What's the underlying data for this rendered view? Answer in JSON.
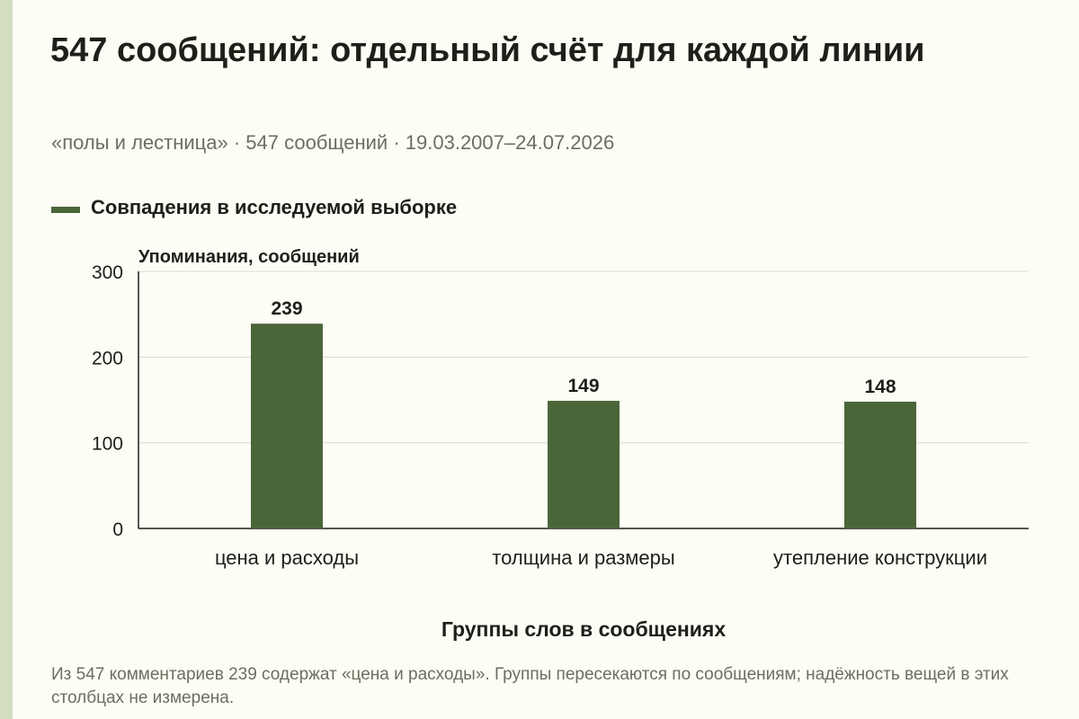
{
  "header": {
    "title": "547 сообщений: отдельный счёт для каждой линии",
    "subtitle": "«полы и лестница» · 547 сообщений · 19.03.2007–24.07.2026"
  },
  "legend": {
    "label": "Совпадения в исследуемой выборке"
  },
  "colors": {
    "bar": "#4a6639",
    "grid": "#dcdcd2",
    "axis": "#1f1f1a",
    "stripe": "#d3ddc0"
  },
  "chart_data": {
    "type": "bar",
    "categories": [
      "цена и расходы",
      "толщина и размеры",
      "утепление конструкции"
    ],
    "series": [
      {
        "name": "Совпадения в исследуемой выборке",
        "values": [
          239,
          149,
          148
        ]
      }
    ],
    "ylabel": "Упоминания, сообщений",
    "xlabel": "Группы слов в сообщениях",
    "ylim": [
      0,
      300
    ],
    "yticks": [
      0,
      100,
      200,
      300
    ],
    "grid": true,
    "legend_position": "top-left"
  },
  "footnote": "Из 547 комментариев 239 содержат «цена и расходы». Группы пересекаются по сообщениям; надёжность вещей в этих столбцах не измерена."
}
